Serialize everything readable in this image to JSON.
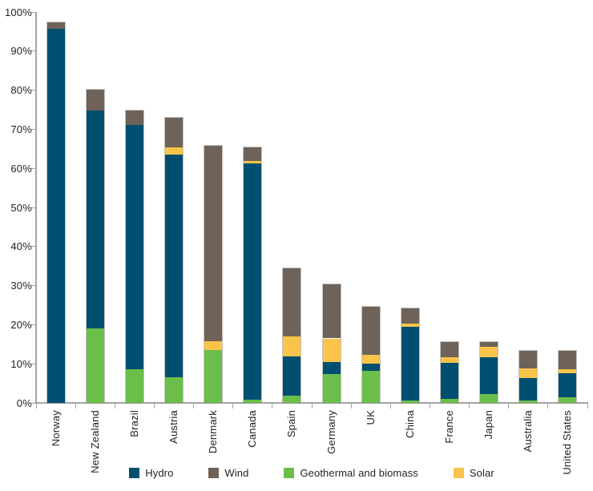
{
  "chart_data": {
    "type": "bar",
    "stacked": true,
    "title": "",
    "xlabel": "",
    "ylabel": "",
    "ylim": [
      0,
      100
    ],
    "grid": false,
    "legend_position": "bottom",
    "ytick_values": [
      0,
      10,
      20,
      30,
      40,
      50,
      60,
      70,
      80,
      90,
      100
    ],
    "ytick_labels": [
      "0%",
      "10%",
      "20%",
      "30%",
      "40%",
      "50%",
      "60%",
      "70%",
      "80%",
      "90%",
      "100%"
    ],
    "categories": [
      "Norway",
      "New Zealand",
      "Brazil",
      "Austria",
      "Denmark",
      "Canada",
      "Spain",
      "Germany",
      "UK",
      "China",
      "France",
      "Japan",
      "Australia",
      "United States"
    ],
    "series": [
      {
        "name": "Geothermal and biomass",
        "color": "#6CBE4B",
        "values": [
          0,
          19.0,
          8.6,
          6.6,
          13.5,
          0.8,
          1.8,
          7.4,
          8.3,
          0.6,
          1.0,
          2.3,
          0.7,
          1.4
        ]
      },
      {
        "name": "Hydro",
        "color": "#004F71",
        "values": [
          95.8,
          55.8,
          62.5,
          56.9,
          0,
          60.5,
          10.0,
          3.1,
          1.8,
          18.9,
          9.3,
          9.4,
          5.7,
          6.2
        ]
      },
      {
        "name": "Solar",
        "color": "#FAC44B",
        "values": [
          0,
          0,
          0,
          1.8,
          2.3,
          0.6,
          5.2,
          6.0,
          2.3,
          0.9,
          1.4,
          2.6,
          2.4,
          1.0
        ]
      },
      {
        "name": "Wind",
        "color": "#6E6259",
        "values": [
          1.6,
          5.4,
          3.7,
          7.7,
          50.0,
          3.6,
          17.5,
          13.8,
          12.2,
          3.8,
          3.8,
          1.2,
          4.5,
          4.7
        ]
      }
    ],
    "legend": [
      {
        "label": "Hydro",
        "color": "#004F71"
      },
      {
        "label": "Wind",
        "color": "#6E6259"
      },
      {
        "label": "Geothermal and biomass",
        "color": "#6CBE4B"
      },
      {
        "label": "Solar",
        "color": "#FAC44B"
      }
    ]
  }
}
